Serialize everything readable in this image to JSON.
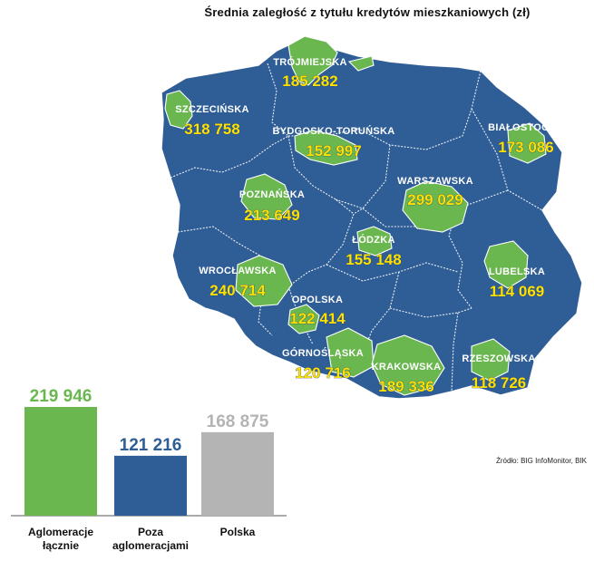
{
  "title": "Średnia zaległość z tytułu kredytów mieszkaniowych (zł)",
  "source": "Źródło: BIG InfoMonitor, BIK",
  "colors": {
    "map_fill": "#2f5d96",
    "agglomeration": "#6ab750",
    "value_text": "#ffe100",
    "bar_green": "#6ab750",
    "bar_blue": "#2f5d96",
    "bar_gray": "#b4b4b4"
  },
  "map_regions": [
    {
      "name": "TRÓJMIEJSKA",
      "value": "185 282"
    },
    {
      "name": "SZCZECIŃSKA",
      "value": "318 758"
    },
    {
      "name": "BYDGOSKO-TORUŃSKA",
      "value": "152 997"
    },
    {
      "name": "BIAŁOSTOCKA",
      "value": "173 086"
    },
    {
      "name": "WARSZAWSKA",
      "value": "299 029"
    },
    {
      "name": "POZNAŃSKA",
      "value": "213 649"
    },
    {
      "name": "ŁÓDZKA",
      "value": "155 148"
    },
    {
      "name": "WROCŁAWSKA",
      "value": "240 714"
    },
    {
      "name": "LUBELSKA",
      "value": "114 069"
    },
    {
      "name": "OPOLSKA",
      "value": "122 414"
    },
    {
      "name": "GÓRNOŚLĄSKA",
      "value": "120 716"
    },
    {
      "name": "KRAKOWSKA",
      "value": "189 336"
    },
    {
      "name": "RZESZOWSKA",
      "value": "118 726"
    }
  ],
  "chart_data": {
    "type": "bar",
    "categories": [
      "Aglomeracje łącznie",
      "Poza aglomeracjami",
      "Polska"
    ],
    "category_lines": [
      [
        "Aglomeracje",
        "łącznie"
      ],
      [
        "Poza",
        "aglomeracjami"
      ],
      [
        "Polska"
      ]
    ],
    "values": [
      219946,
      121216,
      168875
    ],
    "value_labels": [
      "219 946",
      "121 216",
      "168 875"
    ],
    "bar_colors": [
      "#6ab750",
      "#2f5d96",
      "#b4b4b4"
    ],
    "ylim": [
      0,
      220000
    ]
  }
}
